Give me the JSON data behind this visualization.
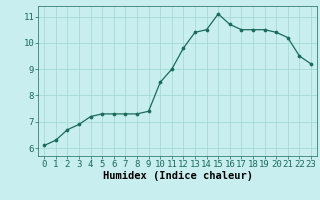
{
  "x": [
    0,
    1,
    2,
    3,
    4,
    5,
    6,
    7,
    8,
    9,
    10,
    11,
    12,
    13,
    14,
    15,
    16,
    17,
    18,
    19,
    20,
    21,
    22,
    23
  ],
  "y": [
    6.1,
    6.3,
    6.7,
    6.9,
    7.2,
    7.3,
    7.3,
    7.3,
    7.3,
    7.4,
    8.5,
    9.0,
    9.8,
    10.4,
    10.5,
    11.1,
    10.7,
    10.5,
    10.5,
    10.5,
    10.4,
    10.2,
    9.5,
    9.2
  ],
  "xlabel": "Humidex (Indice chaleur)",
  "ylim": [
    5.7,
    11.4
  ],
  "xlim": [
    -0.5,
    23.5
  ],
  "yticks": [
    6,
    7,
    8,
    9,
    10,
    11
  ],
  "xticks": [
    0,
    1,
    2,
    3,
    4,
    5,
    6,
    7,
    8,
    9,
    10,
    11,
    12,
    13,
    14,
    15,
    16,
    17,
    18,
    19,
    20,
    21,
    22,
    23
  ],
  "line_color": "#1a6b5a",
  "marker_color": "#1a6b5a",
  "bg_color": "#c8eef0",
  "grid_color": "#a0d8d0",
  "tick_fontsize": 6.5,
  "xlabel_fontsize": 7.5,
  "xlabel_fontweight": "bold"
}
